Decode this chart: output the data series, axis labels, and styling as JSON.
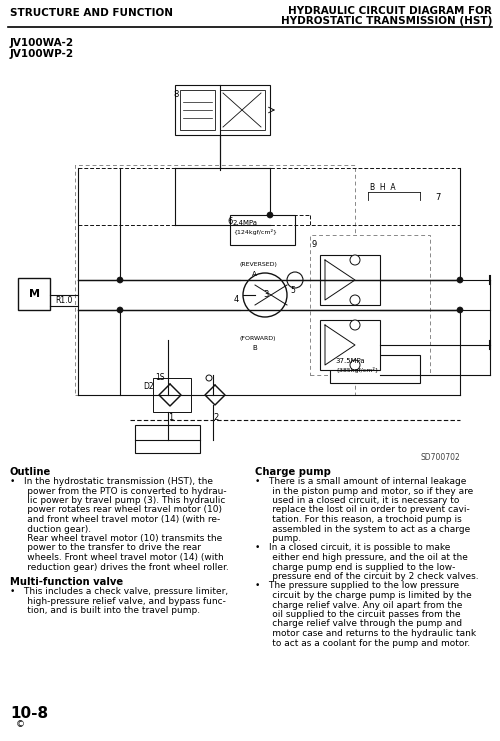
{
  "header_left": "STRUCTURE AND FUNCTION",
  "header_right_line1": "HYDRAULIC CIRCUIT DIAGRAM FOR",
  "header_right_line2": "HYDROSTATIC TRANSMISSION (HST)",
  "model_line1": "JV100WA-2",
  "model_line2": "JV100WP-2",
  "diagram_note": "SD700702",
  "outline_title": "Outline",
  "multi_title": "Multi-function valve",
  "charge_title": "Charge pump",
  "outline_bullet1_line1": "•   In the hydrostatic transmission (HST), the",
  "outline_bullet1_line2": "      power from the PTO is converted to hydrau-",
  "outline_bullet1_line3": "      lic power by travel pump (3). This hydraulic",
  "outline_bullet1_line4": "      power rotates rear wheel travel motor (10)",
  "outline_bullet1_line5": "      and front wheel travel motor (14) (with re-",
  "outline_bullet1_line6": "      duction gear).",
  "outline_cont1": "      Rear wheel travel motor (10) transmits the",
  "outline_cont2": "      power to the transfer to drive the rear",
  "outline_cont3": "      wheels. Front wheel travel motor (14) (with",
  "outline_cont4": "      reduction gear) drives the front wheel roller.",
  "multi_bullet1": "•   This includes a check valve, pressure limiter,",
  "multi_bullet2": "      high-pressure relief valve, and bypass func-",
  "multi_bullet3": "      tion, and is built into the travel pump.",
  "cp_b1_l1": "•   There is a small amount of internal leakage",
  "cp_b1_l2": "      in the piston pump and motor, so if they are",
  "cp_b1_l3": "      used in a closed circuit, it is necessary to",
  "cp_b1_l4": "      replace the lost oil in order to prevent cavi-",
  "cp_b1_l5": "      tation. For this reason, a trochoid pump is",
  "cp_b1_l6": "      assembled in the system to act as a charge",
  "cp_b1_l7": "      pump.",
  "cp_b2_l1": "•   In a closed circuit, it is possible to make",
  "cp_b2_l2": "      either end high pressure, and the oil at the",
  "cp_b2_l3": "      charge pump end is supplied to the low-",
  "cp_b2_l4": "      pressure end of the circuit by 2 check valves.",
  "cp_b3_l1": "•   The pressure supplied to the low pressure",
  "cp_b3_l2": "      circuit by the charge pump is limited by the",
  "cp_b3_l3": "      charge relief valve. Any oil apart from the",
  "cp_b3_l4": "      oil supplied to the circuit passes from the",
  "cp_b3_l5": "      charge relief valve through the pump and",
  "cp_b3_l6": "      motor case and returns to the hydraulic tank",
  "cp_b3_l7": "      to act as a coolant for the pump and motor.",
  "page_number": "10-8",
  "page_circle": "©",
  "bg_color": "#ffffff",
  "text_color": "#000000",
  "line_color": "#111111"
}
